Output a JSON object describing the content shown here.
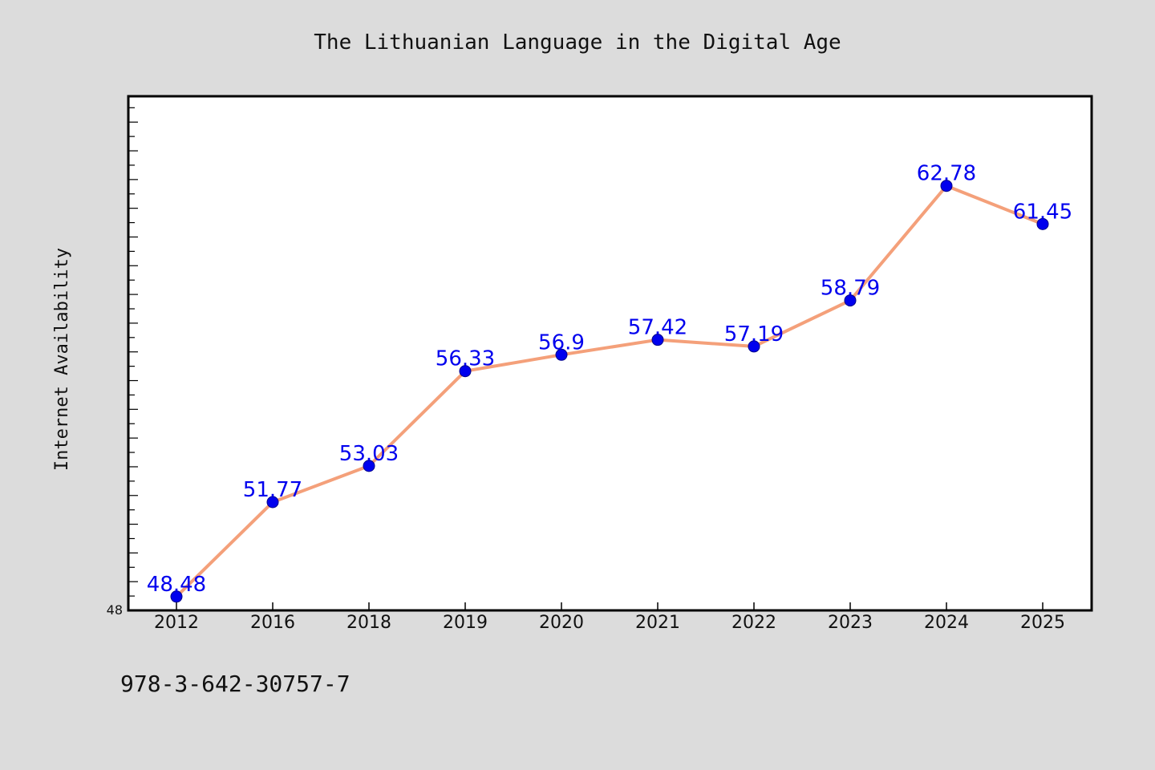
{
  "chart_data": {
    "type": "line",
    "title": "The Lithuanian Language in the Digital Age",
    "xlabel": "",
    "ylabel": "Internet Availability",
    "categories": [
      "2012",
      "2016",
      "2018",
      "2019",
      "2020",
      "2021",
      "2022",
      "2023",
      "2024",
      "2025"
    ],
    "series": [
      {
        "values": [
          48.48,
          51.77,
          53.03,
          56.33,
          56.9,
          57.42,
          57.19,
          58.79,
          62.78,
          61.45
        ],
        "labels": [
          "48.48",
          "51.77",
          "53.03",
          "56.33",
          "56.9",
          "57.42",
          "57.19",
          "58.79",
          "62.78",
          "61.45"
        ]
      }
    ],
    "ylim": [
      48,
      65.9
    ],
    "ytick_labels": [
      "48"
    ],
    "grid": false,
    "legend": "none"
  },
  "footer": {
    "isbn": "978-3-642-30757-7"
  },
  "colors": {
    "background": "#dcdcdc",
    "plot_background": "#ffffff",
    "line": "#f4a07a",
    "marker": "#0000ee",
    "data_label": "#0000ee"
  }
}
